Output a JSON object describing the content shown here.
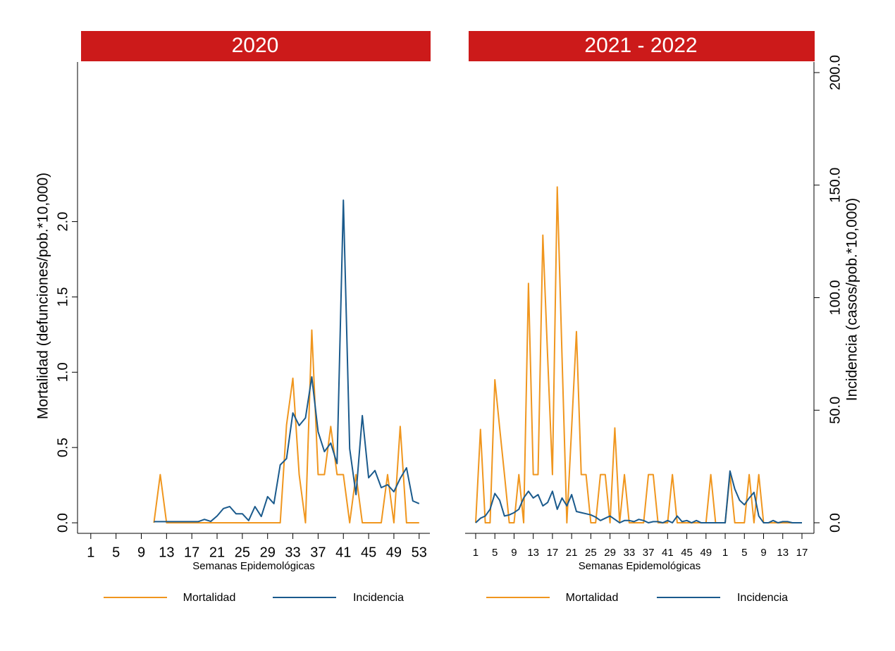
{
  "chart_data": [
    {
      "type": "line",
      "title": "2020",
      "xlabel": "Semanas Epidemológicas",
      "ylabel": "Mortalidad (defunciones/pob.*10,000)",
      "x": [
        11,
        12,
        13,
        14,
        15,
        16,
        17,
        18,
        19,
        20,
        21,
        22,
        23,
        24,
        25,
        26,
        27,
        28,
        29,
        30,
        31,
        32,
        33,
        34,
        35,
        36,
        37,
        38,
        39,
        40,
        41,
        42,
        43,
        44,
        45,
        46,
        47,
        48,
        49,
        50,
        51,
        52,
        53
      ],
      "xlim": [
        -1.1,
        54.7
      ],
      "xticks": [
        1,
        5,
        9,
        13,
        17,
        21,
        25,
        29,
        33,
        37,
        41,
        45,
        49,
        53
      ],
      "ylim": [
        -0.07,
        3.06
      ],
      "yticks": [
        {
          "value": 0,
          "label": "0.0"
        },
        {
          "value": 0.5,
          "label": "0.5"
        },
        {
          "value": 1,
          "label": "1.0"
        },
        {
          "value": 1.5,
          "label": "1.5"
        },
        {
          "value": 2,
          "label": "2.0"
        }
      ],
      "y2lim": [
        -4.7,
        204.7
      ],
      "series": [
        {
          "name": "Mortalidad",
          "color": "#f0961e",
          "axis": "y",
          "values": [
            0,
            0.32,
            0,
            0,
            0,
            0,
            0,
            0,
            0,
            0,
            0,
            0,
            0,
            0,
            0,
            0,
            0,
            0,
            0,
            0,
            0,
            0.65,
            0.96,
            0.32,
            0,
            1.28,
            0.32,
            0.32,
            0.64,
            0.32,
            0.32,
            0,
            0.32,
            0,
            0,
            0,
            0,
            0.32,
            0,
            0.64,
            0,
            0,
            0
          ]
        },
        {
          "name": "Incidencia",
          "color": "#1a5a8c",
          "axis": "y2",
          "values": [
            0.5,
            0.5,
            0.5,
            0.5,
            0.5,
            0.5,
            0.5,
            0.5,
            1.5,
            0.6,
            3,
            6.3,
            7.2,
            4,
            4,
            1,
            7.2,
            2.8,
            11.6,
            8.5,
            25.7,
            28.5,
            48.8,
            43.2,
            46.6,
            64.8,
            40.4,
            31.6,
            35.4,
            26.3,
            143.3,
            32.9,
            12.5,
            47.6,
            20,
            23.2,
            15.6,
            16.9,
            13.8,
            19.7,
            24.4,
            9.7,
            8.5
          ]
        }
      ]
    },
    {
      "type": "line",
      "title": "2021 - 2022",
      "xlabel": "Semanas Epidemológicas",
      "y2label": "Incidencia (casos/pob.*10,000)",
      "x": [
        1,
        2,
        3,
        4,
        5,
        6,
        7,
        8,
        9,
        10,
        11,
        12,
        13,
        14,
        15,
        16,
        17,
        18,
        19,
        20,
        21,
        22,
        23,
        24,
        25,
        26,
        27,
        28,
        29,
        30,
        31,
        32,
        33,
        34,
        35,
        36,
        37,
        38,
        39,
        40,
        41,
        42,
        43,
        44,
        45,
        46,
        47,
        48,
        49,
        50,
        51,
        52,
        53,
        54,
        55,
        56,
        57,
        58,
        59,
        60,
        61,
        62,
        63,
        64,
        65,
        66,
        67,
        68,
        69
      ],
      "xlim": [
        -1.2,
        71.5
      ],
      "xticks": [
        1,
        5,
        9,
        13,
        17,
        21,
        25,
        29,
        33,
        37,
        41,
        45,
        49,
        {
          "value": 53,
          "label": "1"
        },
        {
          "value": 57,
          "label": "5"
        },
        {
          "value": 61,
          "label": "9"
        },
        {
          "value": 65,
          "label": "13"
        },
        {
          "value": 69,
          "label": "17"
        }
      ],
      "ylim": [
        -0.07,
        3.06
      ],
      "y2lim": [
        -4.7,
        204.7
      ],
      "y2ticks": [
        {
          "value": 0,
          "label": "0.0"
        },
        {
          "value": 50,
          "label": "50.0"
        },
        {
          "value": 100,
          "label": "100.0"
        },
        {
          "value": 150,
          "label": "150.0"
        },
        {
          "value": 200,
          "label": "200.0"
        }
      ],
      "series": [
        {
          "name": "Mortalidad",
          "color": "#f0961e",
          "axis": "y",
          "values": [
            0,
            0.62,
            0,
            0,
            0.95,
            0.63,
            0.32,
            0,
            0,
            0.32,
            0,
            1.59,
            0.32,
            0.32,
            1.91,
            1.1,
            0.32,
            2.23,
            1.1,
            0,
            0.63,
            1.27,
            0.32,
            0.32,
            0,
            0,
            0.32,
            0.32,
            0,
            0.63,
            0,
            0.32,
            0,
            0,
            0,
            0,
            0.32,
            0.32,
            0,
            0,
            0,
            0.32,
            0,
            0,
            0,
            0,
            0,
            0,
            0,
            0.32,
            0,
            0,
            0,
            0.32,
            0,
            0,
            0,
            0.32,
            0,
            0.32,
            0,
            0,
            0,
            0,
            0,
            0,
            0,
            0,
            0
          ]
        },
        {
          "name": "Incidencia",
          "color": "#1a5a8c",
          "axis": "y2",
          "values": [
            0,
            2,
            3,
            6,
            13,
            10,
            3,
            3.5,
            4.5,
            6,
            11,
            14,
            11,
            12.5,
            7.5,
            9,
            14,
            6,
            11,
            7.5,
            12.5,
            5,
            4.5,
            4,
            3.5,
            2.5,
            1,
            2,
            3,
            1.5,
            0,
            1,
            1,
            0.5,
            1.5,
            1,
            0,
            0.5,
            0.5,
            0,
            1,
            0,
            3,
            0.5,
            1,
            0,
            1,
            0,
            0,
            0,
            0,
            0,
            0,
            23,
            15,
            10,
            8,
            11,
            13.5,
            3,
            0,
            0,
            1,
            0,
            0.5,
            0.5,
            0,
            0,
            0
          ]
        }
      ]
    }
  ]
}
